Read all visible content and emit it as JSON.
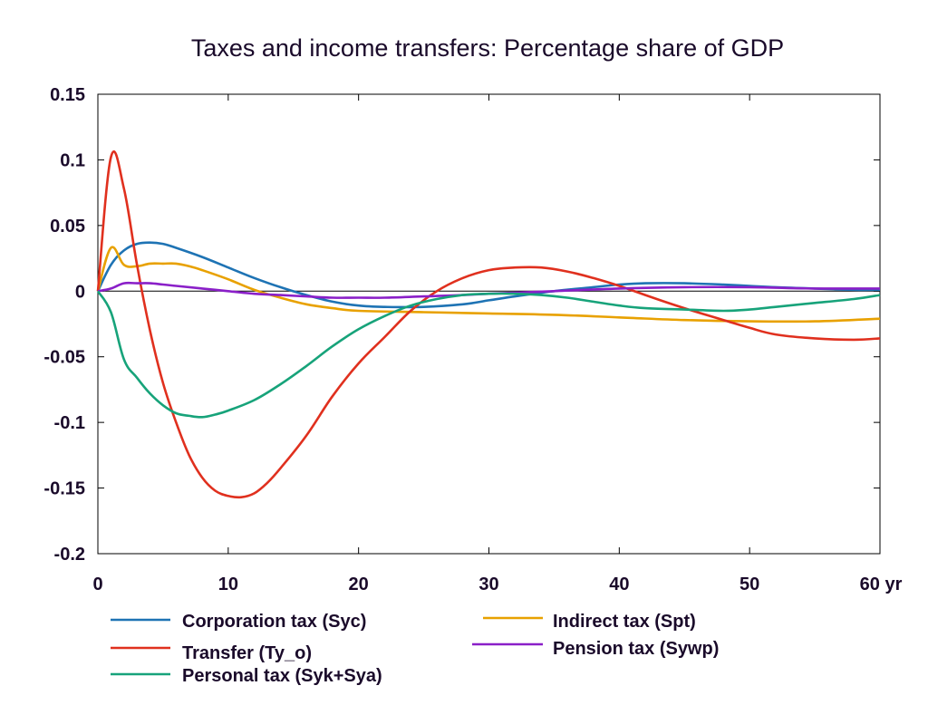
{
  "chart_data": {
    "type": "line",
    "title": "Taxes and income transfers: Percentage share of GDP",
    "xlabel": "",
    "ylabel": "",
    "x_unit": "yr",
    "xlim": [
      0,
      60
    ],
    "ylim": [
      -0.2,
      0.15
    ],
    "x_ticks": [
      "0",
      "10",
      "20",
      "30",
      "40",
      "50",
      "60 yr"
    ],
    "y_ticks": [
      "0.15",
      "0.1",
      "0.05",
      "0",
      "-0.05",
      "-0.1",
      "-0.15",
      "-0.2"
    ],
    "grid": false,
    "legend_position": "bottom",
    "series": [
      {
        "name": "Corporation tax (Syc)",
        "color": "#1e73b4",
        "x": [
          0,
          1,
          2,
          3,
          4,
          5,
          6,
          8,
          10,
          12,
          14,
          16,
          18,
          20,
          22,
          25,
          28,
          30,
          32,
          35,
          38,
          40,
          42,
          45,
          48,
          50,
          52,
          55,
          58,
          60
        ],
        "y": [
          0,
          0.02,
          0.031,
          0.036,
          0.037,
          0.036,
          0.033,
          0.026,
          0.018,
          0.01,
          0.003,
          -0.003,
          -0.008,
          -0.011,
          -0.012,
          -0.012,
          -0.01,
          -0.007,
          -0.004,
          0,
          0.003,
          0.005,
          0.006,
          0.006,
          0.005,
          0.004,
          0.003,
          0.002,
          0.001,
          0.001
        ]
      },
      {
        "name": "Indirect tax (Spt)",
        "color": "#e8a100",
        "x": [
          0,
          1,
          2,
          3,
          4,
          5,
          6,
          7,
          8,
          10,
          12,
          14,
          16,
          18,
          20,
          25,
          30,
          35,
          40,
          45,
          50,
          55,
          60
        ],
        "y": [
          0,
          0.033,
          0.02,
          0.019,
          0.021,
          0.021,
          0.021,
          0.019,
          0.016,
          0.009,
          0.001,
          -0.005,
          -0.01,
          -0.013,
          -0.015,
          -0.016,
          -0.017,
          -0.018,
          -0.02,
          -0.022,
          -0.023,
          -0.023,
          -0.021
        ]
      },
      {
        "name": "Transfer (Ty_o)",
        "color": "#e0301e",
        "x": [
          0,
          1,
          2,
          3,
          4,
          5,
          6,
          7,
          8,
          9,
          10,
          11,
          12,
          13,
          14,
          16,
          18,
          20,
          22,
          24,
          26,
          28,
          30,
          32,
          34,
          36,
          38,
          40,
          42,
          45,
          48,
          50,
          52,
          55,
          58,
          60
        ],
        "y": [
          0,
          0.102,
          0.078,
          0.02,
          -0.03,
          -0.07,
          -0.1,
          -0.125,
          -0.142,
          -0.152,
          -0.156,
          -0.157,
          -0.154,
          -0.146,
          -0.135,
          -0.11,
          -0.08,
          -0.055,
          -0.035,
          -0.015,
          0,
          0.01,
          0.016,
          0.018,
          0.018,
          0.015,
          0.01,
          0.004,
          -0.003,
          -0.013,
          -0.022,
          -0.028,
          -0.033,
          -0.036,
          -0.037,
          -0.036
        ]
      },
      {
        "name": "Pension tax (Sywp)",
        "color": "#8a1fc8",
        "x": [
          0,
          1,
          2,
          3,
          4,
          5,
          6,
          8,
          10,
          12,
          14,
          16,
          18,
          20,
          22,
          25,
          28,
          30,
          35,
          40,
          45,
          50,
          55,
          60
        ],
        "y": [
          0,
          0.002,
          0.006,
          0.006,
          0.006,
          0.005,
          0.004,
          0.002,
          0,
          -0.002,
          -0.003,
          -0.004,
          -0.005,
          -0.005,
          -0.005,
          -0.004,
          -0.003,
          -0.002,
          0,
          0.002,
          0.003,
          0.003,
          0.002,
          0.002
        ]
      },
      {
        "name": "Personal tax (Syk+Sya)",
        "color": "#17a37a",
        "x": [
          0,
          1,
          2,
          3,
          4,
          5,
          6,
          7,
          8,
          9,
          10,
          12,
          14,
          16,
          18,
          20,
          22,
          24,
          26,
          28,
          30,
          32,
          34,
          36,
          38,
          40,
          42,
          45,
          48,
          50,
          52,
          55,
          58,
          60
        ],
        "y": [
          0,
          -0.016,
          -0.052,
          -0.066,
          -0.078,
          -0.087,
          -0.093,
          -0.095,
          -0.096,
          -0.094,
          -0.091,
          -0.083,
          -0.071,
          -0.057,
          -0.042,
          -0.029,
          -0.019,
          -0.011,
          -0.006,
          -0.003,
          -0.002,
          -0.002,
          -0.003,
          -0.005,
          -0.008,
          -0.011,
          -0.013,
          -0.014,
          -0.015,
          -0.014,
          -0.012,
          -0.009,
          -0.006,
          -0.003
        ]
      }
    ]
  },
  "legend": [
    {
      "label": "Corporation tax (Syc)",
      "color": "#1e73b4"
    },
    {
      "label": "Transfer (Ty_o)",
      "color": "#e0301e"
    },
    {
      "label": "Personal tax (Syk+Sya)",
      "color": "#17a37a"
    },
    {
      "label": "Indirect tax (Spt)",
      "color": "#e8a100"
    },
    {
      "label": "Pension tax (Sywp)",
      "color": "#8a1fc8"
    }
  ]
}
